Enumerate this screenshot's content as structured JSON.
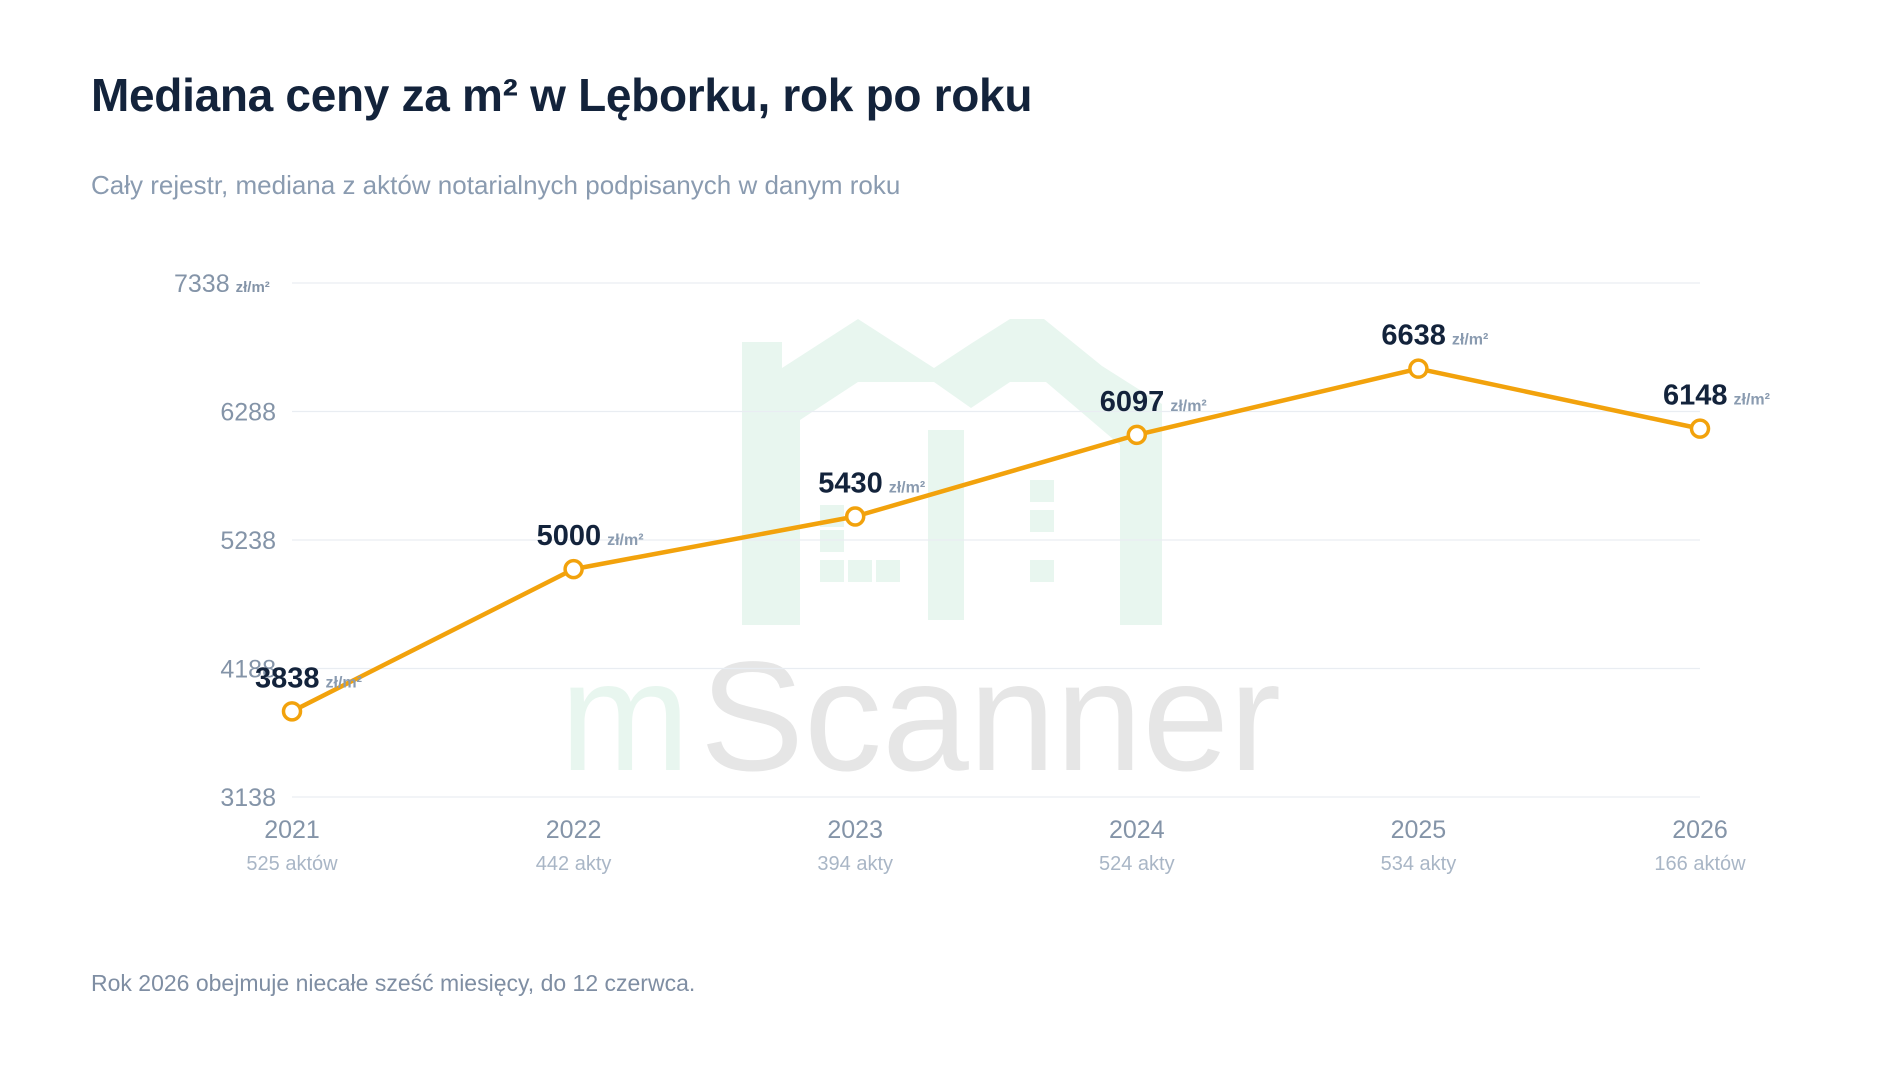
{
  "header": {
    "title": "Mediana ceny za m² w Lęborku, rok po roku",
    "subtitle": "Cały rejestr, mediana z aktów notarialnych podpisanych w danym roku"
  },
  "footer": {
    "note": "Rok 2026 obejmuje niecałe sześć miesięcy, do 12 czerwca."
  },
  "watermark": {
    "text_part1": "m",
    "text_part2": "Scanner",
    "color_light": "#e8f6ef",
    "color_gray": "#e6e6e6"
  },
  "colors": {
    "line": "#f2a20c",
    "grid": "#e9edf2",
    "title": "#13233b",
    "muted": "#8494a8"
  },
  "chart_data": {
    "type": "line",
    "x": [
      "2021",
      "2022",
      "2023",
      "2024",
      "2025",
      "2026"
    ],
    "x_sublabels": [
      "525 aktów",
      "442 akty",
      "394 akty",
      "524 akty",
      "534 akty",
      "166 aktów"
    ],
    "series": [
      {
        "values": [
          3838,
          5000,
          5430,
          6097,
          6638,
          6148
        ]
      }
    ],
    "unit": "zł/m²",
    "yticks": [
      3138,
      4188,
      5238,
      6288,
      7338
    ],
    "ytick_unit_on": [
      7338
    ],
    "ylim": [
      3138,
      7338
    ],
    "grid": true,
    "marker": "hollow-circle"
  }
}
